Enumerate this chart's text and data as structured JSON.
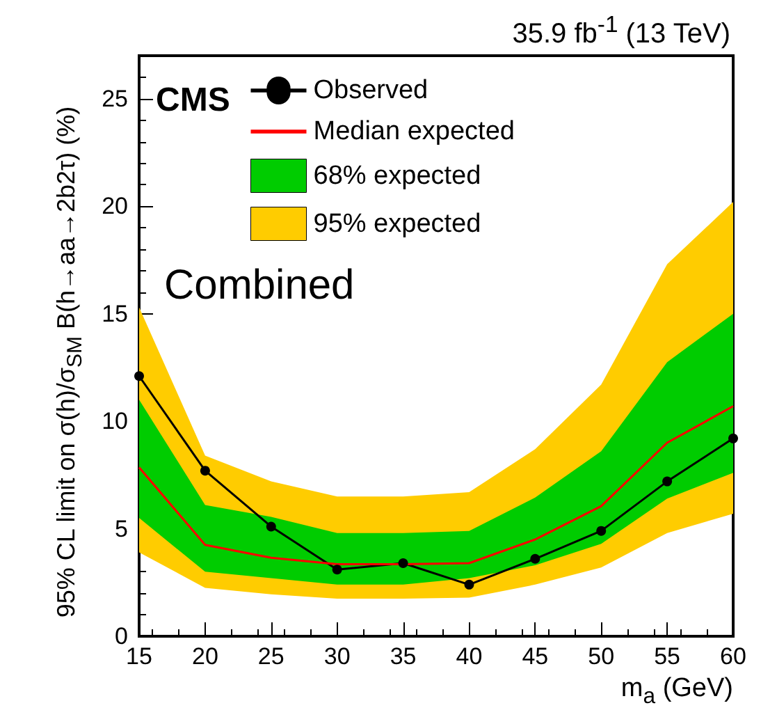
{
  "chart_data": {
    "type": "line",
    "ylabel": "95% CL limit on σ(h)/σ$_{SM}$ B(h→aa→2b2τ) (%)",
    "xlabel": "m$_{a}$ (GeV)",
    "annotations": [
      "35.9 fb$^{-1}$ (13 TeV)",
      "CMS",
      "Combined"
    ],
    "x": [
      15,
      20,
      25,
      30,
      35,
      40,
      45,
      50,
      55,
      60
    ],
    "series": [
      {
        "name": "Observed",
        "type": "line",
        "color": "#000000",
        "marker": "circle",
        "values": [
          12.1,
          7.7,
          5.1,
          3.1,
          3.4,
          2.4,
          3.6,
          4.9,
          7.2,
          9.2
        ]
      },
      {
        "name": "Median expected",
        "type": "line",
        "color": "#ff0000",
        "marker": "none",
        "values": [
          7.85,
          4.25,
          3.65,
          3.35,
          3.35,
          3.4,
          4.5,
          6.05,
          9.0,
          10.7
        ]
      },
      {
        "name": "68% expected",
        "type": "area",
        "color": "#00cc00",
        "values": [
          null,
          null,
          null,
          null,
          null,
          null,
          null,
          null,
          null,
          null
        ],
        "lower": [
          5.5,
          3.0,
          2.7,
          2.4,
          2.4,
          2.7,
          3.3,
          4.3,
          6.4,
          7.6
        ],
        "upper": [
          11.0,
          6.1,
          5.55,
          4.8,
          4.8,
          4.9,
          6.45,
          8.6,
          12.75,
          15.0
        ]
      },
      {
        "name": "95% expected",
        "type": "area",
        "color": "#ffcc00",
        "values": [
          null,
          null,
          null,
          null,
          null,
          null,
          null,
          null,
          null,
          null
        ],
        "lower": [
          3.9,
          2.25,
          1.95,
          1.75,
          1.75,
          1.8,
          2.4,
          3.2,
          4.8,
          5.7
        ],
        "upper": [
          15.3,
          8.4,
          7.2,
          6.5,
          6.5,
          6.7,
          8.7,
          11.7,
          17.3,
          20.2
        ]
      }
    ],
    "xlim": [
      15,
      60
    ],
    "xticks": [
      15,
      20,
      25,
      30,
      35,
      40,
      45,
      50,
      55,
      60
    ],
    "ylim": [
      0,
      27
    ],
    "yticks": [
      0,
      5,
      10,
      15,
      20,
      25
    ],
    "grid": false,
    "legend": "top"
  }
}
